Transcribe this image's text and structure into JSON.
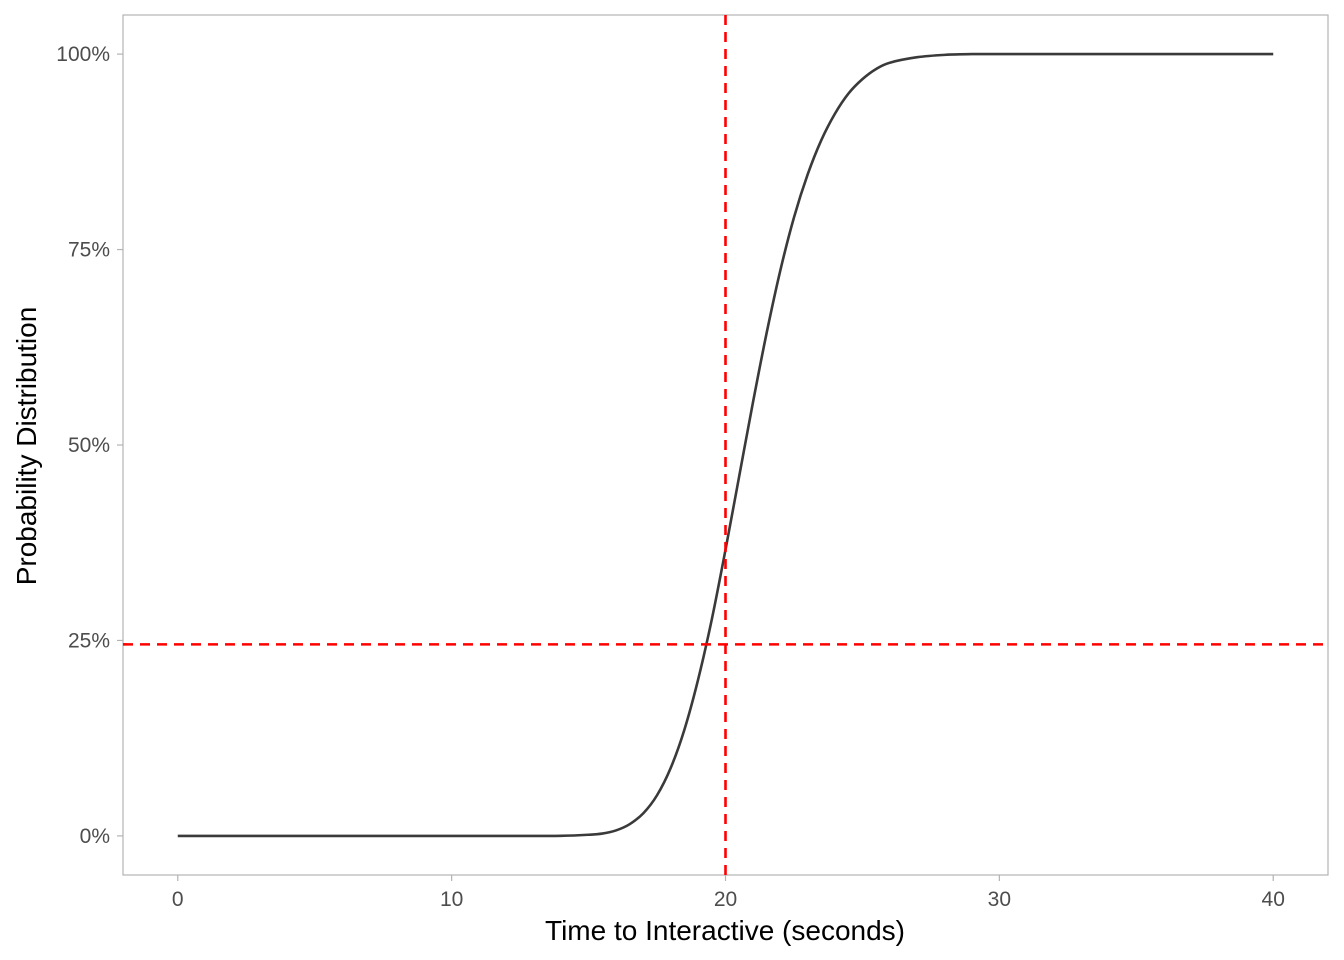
{
  "chart_data": {
    "type": "line",
    "title": "",
    "xlabel": "Time to Interactive (seconds)",
    "ylabel": "Probability Distribution",
    "xlim": [
      -2,
      42
    ],
    "ylim": [
      -0.05,
      1.05
    ],
    "x_ticks": [
      0,
      10,
      20,
      30,
      40
    ],
    "x_tick_labels": [
      "0",
      "10",
      "20",
      "30",
      "40"
    ],
    "y_ticks": [
      0,
      0.25,
      0.5,
      0.75,
      1.0
    ],
    "y_tick_labels": [
      "0%",
      "25%",
      "50%",
      "75%",
      "100%"
    ],
    "grid": false,
    "legend": "none",
    "series": [
      {
        "color": "#3a3a3a",
        "x": [
          0,
          2,
          4,
          6,
          8,
          10,
          12,
          13,
          14,
          15,
          15.5,
          16,
          16.5,
          17,
          17.5,
          18,
          18.5,
          19,
          19.5,
          20,
          20.5,
          21,
          21.5,
          22,
          22.5,
          23,
          23.5,
          24,
          24.5,
          25,
          25.5,
          26,
          27,
          28,
          29,
          30,
          32,
          34,
          36,
          38,
          40
        ],
        "y": [
          0,
          0,
          0,
          0,
          0,
          0,
          0,
          0,
          0.0001,
          0.0015,
          0.003,
          0.007,
          0.015,
          0.029,
          0.052,
          0.087,
          0.136,
          0.2,
          0.277,
          0.366,
          0.46,
          0.554,
          0.643,
          0.723,
          0.791,
          0.846,
          0.89,
          0.924,
          0.95,
          0.968,
          0.981,
          0.989,
          0.996,
          0.999,
          1.0,
          1.0,
          1.0,
          1.0,
          1.0,
          1.0,
          1.0
        ]
      }
    ],
    "reference_lines": [
      {
        "orientation": "vertical",
        "value": 20,
        "color": "#ff0000",
        "style": "dashed"
      },
      {
        "orientation": "horizontal",
        "value": 0.245,
        "color": "#ff0000",
        "style": "dashed"
      }
    ],
    "colors": {
      "panel_border": "#b3b3b3",
      "tick": "#b3b3b3"
    }
  }
}
